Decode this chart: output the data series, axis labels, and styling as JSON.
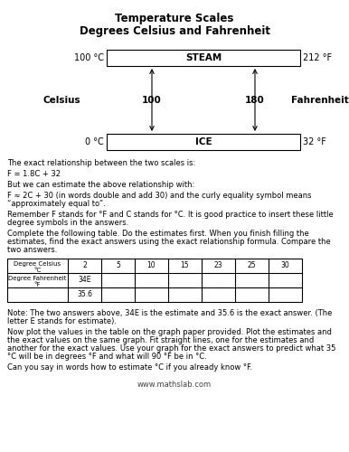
{
  "title1": "Temperature Scales",
  "title2": "Degrees Celsius and Fahrenheit",
  "steam_label": "STEAM",
  "ice_label": "ICE",
  "steam_celsius": "100 °C",
  "steam_fahrenheit": "212 °F",
  "ice_celsius": "0 °C",
  "ice_fahrenheit": "32 °F",
  "celsius_label": "Celsius",
  "fahrenheit_label": "Fahrenheit",
  "celsius_diff": "100",
  "fahrenheit_diff": "180",
  "para1": "The exact relationship between the two scales is:",
  "para2": "F = 1.8C + 32",
  "para3": "But we can estimate the above relationship with:",
  "para4": "F ≈ 2C + 30 (in words double and add 30) and the curly equality symbol means “approximately equal to”.",
  "para5": "Remember F stands for °F and C stands for °C.  It is good practice to insert these little degree symbols in the answers.",
  "para6": "Complete the following table.  Do the estimates first.  When you finish filling the estimates, find the exact answers using the exact relationship formula.  Compare the two answers.",
  "table_header": [
    "Degree Celsius\n°C",
    "2",
    "5",
    "10",
    "15",
    "23",
    "25",
    "30"
  ],
  "table_row_label": "Degree Fahrenheit\n°F",
  "table_row_val1a": "34E",
  "table_row_val1b": "35.6",
  "note": "Note: The two answers above, 34E is the estimate and 35.6 is the exact answer.  (The letter E stands for estimate).",
  "para7": "Now plot the values in the table on the graph paper provided.  Plot the estimates and the exact values on the same graph.  Fit straight lines, one for the estimates and another for the exact values.  Use your graph for the exact answers to predict what 35 °C will be in degrees °F and what will 90 °F be in °C.",
  "para8": "Can you say in words how to estimate °C if you already know °F.",
  "footer": "www.mathslab.com",
  "bg_color": "#ffffff"
}
